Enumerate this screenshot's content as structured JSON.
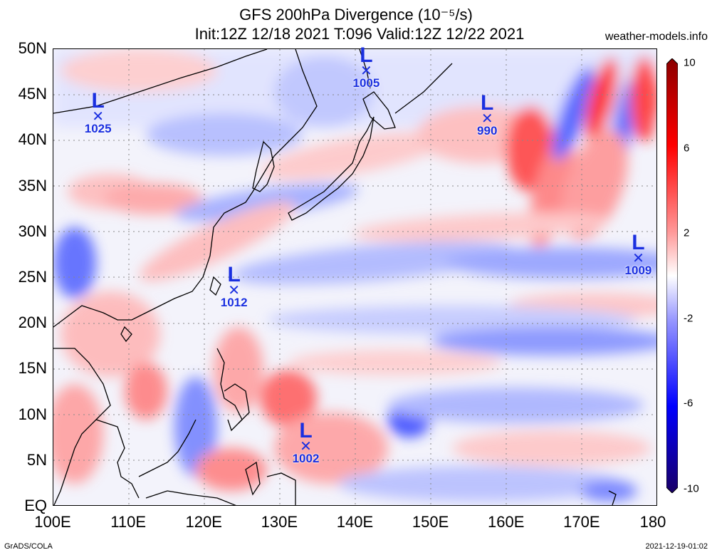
{
  "title_line1": "GFS 200hPa Divergence (10⁻⁵/s)",
  "title_line2": "Init:12Z 12/18 2021 T:096 Valid:12Z 12/22 2021",
  "site": "weather-models.info",
  "footer_left": "GrADS/COLA",
  "footer_right": "2021-12-19-01:02",
  "map": {
    "lat_labels": [
      "50N",
      "45N",
      "40N",
      "35N",
      "30N",
      "25N",
      "20N",
      "15N",
      "10N",
      "5N",
      "EQ"
    ],
    "lon_labels": [
      "100E",
      "110E",
      "120E",
      "130E",
      "140E",
      "150E",
      "160E",
      "170E",
      "180"
    ],
    "lat_range": [
      0,
      50
    ],
    "lon_range": [
      100,
      180
    ],
    "gridlines": true
  },
  "colorbar": {
    "labels": [
      "10",
      "6",
      "2",
      "-2",
      "-6",
      "-10"
    ],
    "colors": [
      "#8b0000",
      "#ff0000",
      "#ff9999",
      "#ffffff",
      "#9999ff",
      "#0000ff",
      "#1a0066"
    ]
  },
  "lows": [
    {
      "label": "L",
      "pressure": "1025",
      "lat": 42.5,
      "lon": 106
    },
    {
      "label": "L",
      "pressure": "1005",
      "lat": 47.5,
      "lon": 141.5
    },
    {
      "label": "L",
      "pressure": "990",
      "lat": 42.3,
      "lon": 157.5
    },
    {
      "label": "L",
      "pressure": "1009",
      "lat": 27,
      "lon": 177.5
    },
    {
      "label": "L",
      "pressure": "1012",
      "lat": 23.5,
      "lon": 124
    },
    {
      "label": "L",
      "pressure": "1002",
      "lat": 6.5,
      "lon": 133.5
    }
  ]
}
